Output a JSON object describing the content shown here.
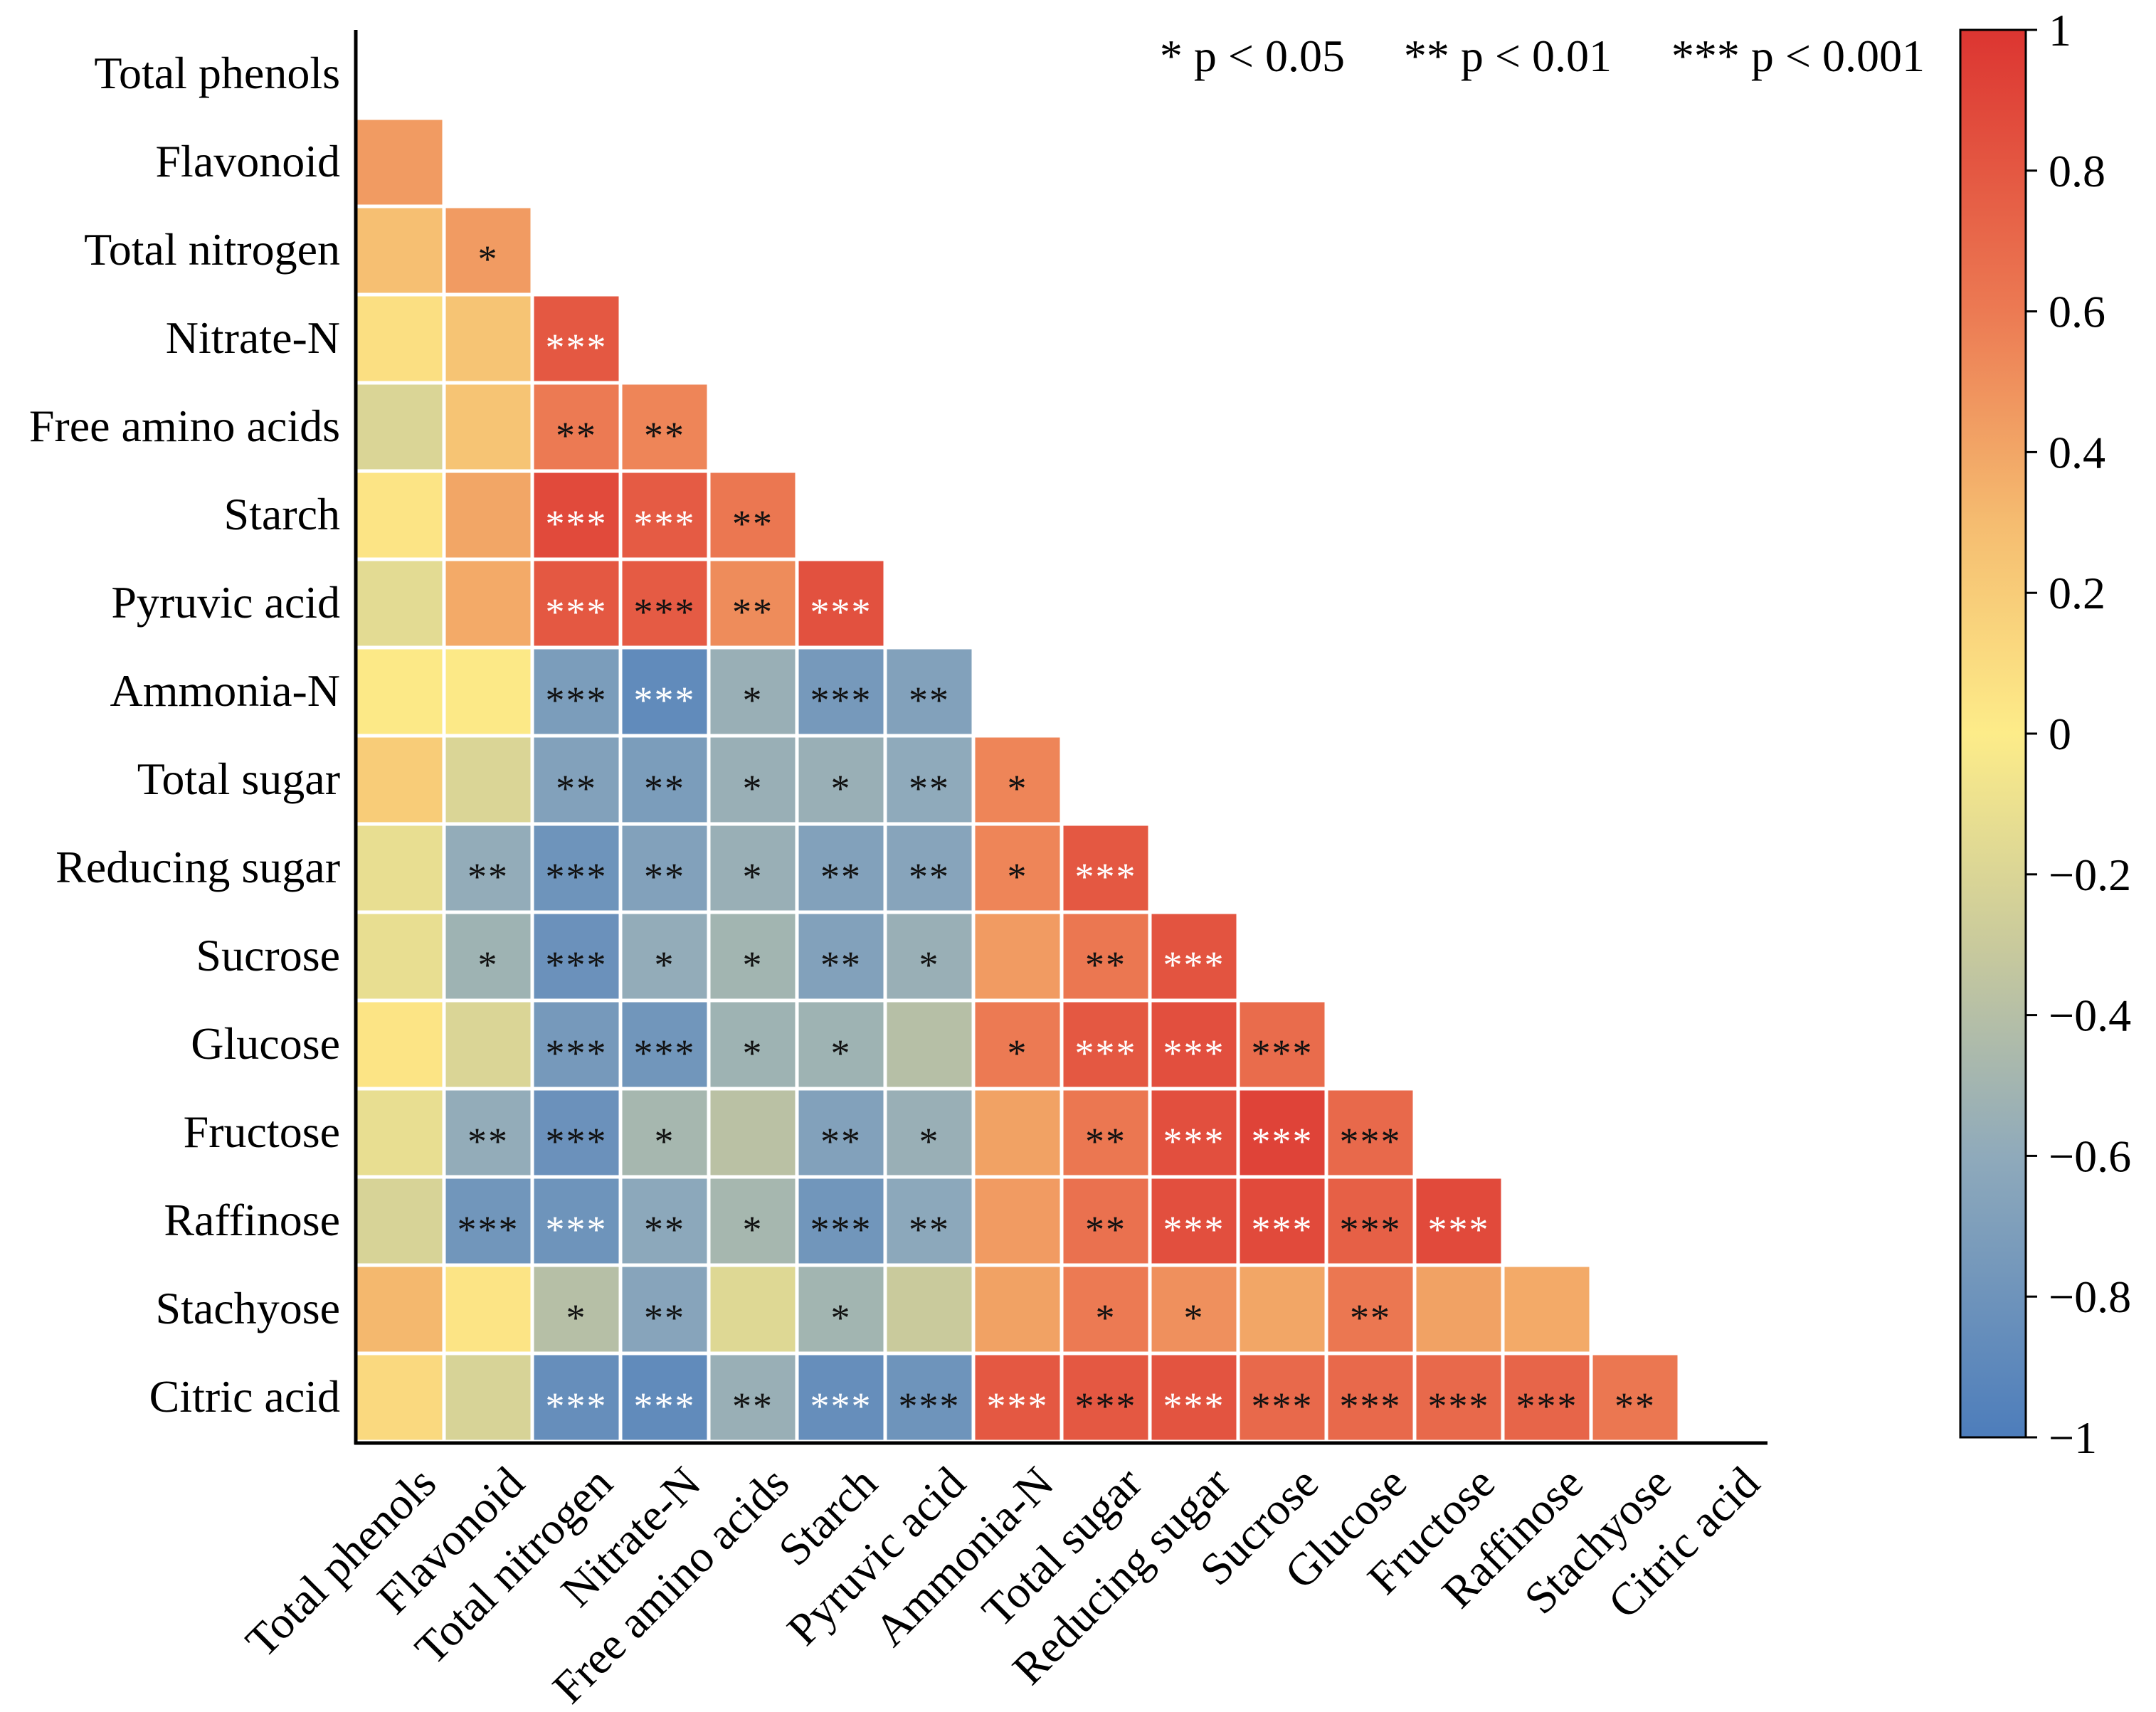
{
  "chart_data": {
    "type": "heatmap",
    "subtype": "lower-triangle correlation matrix",
    "variables": [
      "Total phenols",
      "Flavonoid",
      "Total nitrogen",
      "Nitrate-N",
      "Free amino acids",
      "Starch",
      "Pyruvic acid",
      "Ammonia-N",
      "Total sugar",
      "Reducing sugar",
      "Sucrose",
      "Glucose",
      "Fructose",
      "Raffinose",
      "Stachyose",
      "Citric acid"
    ],
    "values": [
      [],
      [
        0.45
      ],
      [
        0.28,
        0.45
      ],
      [
        0.08,
        0.25,
        0.8
      ],
      [
        -0.2,
        0.25,
        0.6,
        0.55
      ],
      [
        0.05,
        0.4,
        0.88,
        0.78,
        0.62
      ],
      [
        -0.15,
        0.38,
        0.8,
        0.78,
        0.52,
        0.84
      ],
      [
        0.02,
        0.02,
        -0.72,
        -0.88,
        -0.55,
        -0.75,
        -0.68
      ],
      [
        0.2,
        -0.2,
        -0.68,
        -0.72,
        -0.55,
        -0.55,
        -0.6,
        0.55
      ],
      [
        -0.12,
        -0.58,
        -0.8,
        -0.68,
        -0.55,
        -0.68,
        -0.65,
        0.55,
        0.8
      ],
      [
        -0.12,
        -0.52,
        -0.82,
        -0.58,
        -0.5,
        -0.68,
        -0.55,
        0.45,
        0.62,
        0.82
      ],
      [
        0.05,
        -0.2,
        -0.75,
        -0.78,
        -0.52,
        -0.52,
        -0.4,
        0.6,
        0.8,
        0.85,
        0.68
      ],
      [
        -0.12,
        -0.58,
        -0.82,
        -0.48,
        -0.38,
        -0.68,
        -0.55,
        0.42,
        0.62,
        0.85,
        0.92,
        0.7
      ],
      [
        -0.22,
        -0.78,
        -0.8,
        -0.62,
        -0.48,
        -0.78,
        -0.62,
        0.45,
        0.65,
        0.85,
        0.88,
        0.75,
        0.88
      ],
      [
        0.32,
        0.05,
        -0.4,
        -0.65,
        -0.18,
        -0.5,
        -0.3,
        0.42,
        0.6,
        0.5,
        0.4,
        0.62,
        0.42,
        0.38
      ],
      [
        0.12,
        -0.22,
        -0.85,
        -0.88,
        -0.55,
        -0.85,
        -0.8,
        0.8,
        0.8,
        0.82,
        0.7,
        0.7,
        0.7,
        0.72,
        0.62
      ]
    ],
    "significance": [
      [],
      [
        ""
      ],
      [
        "",
        "*"
      ],
      [
        "",
        "",
        "***"
      ],
      [
        "",
        "",
        "**",
        "**"
      ],
      [
        "",
        "",
        "***",
        "***",
        "**"
      ],
      [
        "",
        "",
        "***",
        "***",
        "**",
        "***"
      ],
      [
        "",
        "",
        "***",
        "***",
        "*",
        "***",
        "**"
      ],
      [
        "",
        "",
        "**",
        "**",
        "*",
        "*",
        "**",
        "*"
      ],
      [
        "",
        "**",
        "***",
        "**",
        "*",
        "**",
        "**",
        "*",
        "***"
      ],
      [
        "",
        "*",
        "***",
        "*",
        "*",
        "**",
        "*",
        "",
        "**",
        "***"
      ],
      [
        "",
        "",
        "***",
        "***",
        "*",
        "*",
        "",
        "*",
        "***",
        "***",
        "***"
      ],
      [
        "",
        "**",
        "***",
        "*",
        "",
        "**",
        "*",
        "",
        "**",
        "***",
        "***",
        "***"
      ],
      [
        "",
        "***",
        "***",
        "**",
        "*",
        "***",
        "**",
        "",
        "**",
        "***",
        "***",
        "***",
        "***"
      ],
      [
        "",
        "",
        "*",
        "**",
        "",
        "*",
        "",
        "",
        "*",
        "*",
        "",
        "**",
        "",
        ""
      ],
      [
        "",
        "",
        "***",
        "***",
        "**",
        "***",
        "***",
        "***",
        "***",
        "***",
        "***",
        "***",
        "***",
        "***",
        "**"
      ]
    ],
    "significance_text_color": [
      [],
      [
        "k"
      ],
      [
        "k",
        "k"
      ],
      [
        "k",
        "k",
        "w"
      ],
      [
        "k",
        "k",
        "k",
        "k"
      ],
      [
        "k",
        "k",
        "w",
        "w",
        "k"
      ],
      [
        "k",
        "k",
        "w",
        "k",
        "k",
        "w"
      ],
      [
        "k",
        "k",
        "k",
        "w",
        "k",
        "k",
        "k"
      ],
      [
        "k",
        "k",
        "k",
        "k",
        "k",
        "k",
        "k",
        "k"
      ],
      [
        "k",
        "k",
        "k",
        "k",
        "k",
        "k",
        "k",
        "k",
        "w"
      ],
      [
        "k",
        "k",
        "k",
        "k",
        "k",
        "k",
        "k",
        "k",
        "k",
        "w"
      ],
      [
        "k",
        "k",
        "k",
        "k",
        "k",
        "k",
        "k",
        "k",
        "w",
        "w",
        "k"
      ],
      [
        "k",
        "k",
        "k",
        "k",
        "k",
        "k",
        "k",
        "k",
        "k",
        "w",
        "w",
        "k"
      ],
      [
        "k",
        "k",
        "w",
        "k",
        "k",
        "k",
        "k",
        "k",
        "k",
        "w",
        "w",
        "k",
        "w"
      ],
      [
        "k",
        "k",
        "k",
        "k",
        "k",
        "k",
        "k",
        "k",
        "k",
        "k",
        "k",
        "k",
        "k",
        "k"
      ],
      [
        "k",
        "k",
        "w",
        "w",
        "k",
        "w",
        "k",
        "w",
        "k",
        "w",
        "k",
        "k",
        "k",
        "k",
        "k"
      ]
    ],
    "legend_text": [
      "* p < 0.05",
      "** p < 0.01",
      "*** p < 0.001"
    ],
    "colorbar": {
      "range": [
        -1,
        1
      ],
      "ticks": [
        1,
        0.8,
        0.6,
        0.4,
        0.2,
        0,
        -0.2,
        -0.4,
        -0.6,
        -0.8,
        -1
      ],
      "tick_labels": [
        "1",
        "0.8",
        "0.6",
        "0.4",
        "0.2",
        "0",
        "−0.2",
        "−0.4",
        "−0.6",
        "−0.8",
        "−1"
      ],
      "color_stops": [
        {
          "v": -1,
          "c": "#4d7dbb"
        },
        {
          "v": -0.6,
          "c": "#8faabb"
        },
        {
          "v": -0.3,
          "c": "#c9ca9c"
        },
        {
          "v": 0,
          "c": "#fdec89"
        },
        {
          "v": 0.3,
          "c": "#f5bc70"
        },
        {
          "v": 0.6,
          "c": "#ec7a53"
        },
        {
          "v": 1,
          "c": "#dc3531"
        }
      ]
    }
  }
}
